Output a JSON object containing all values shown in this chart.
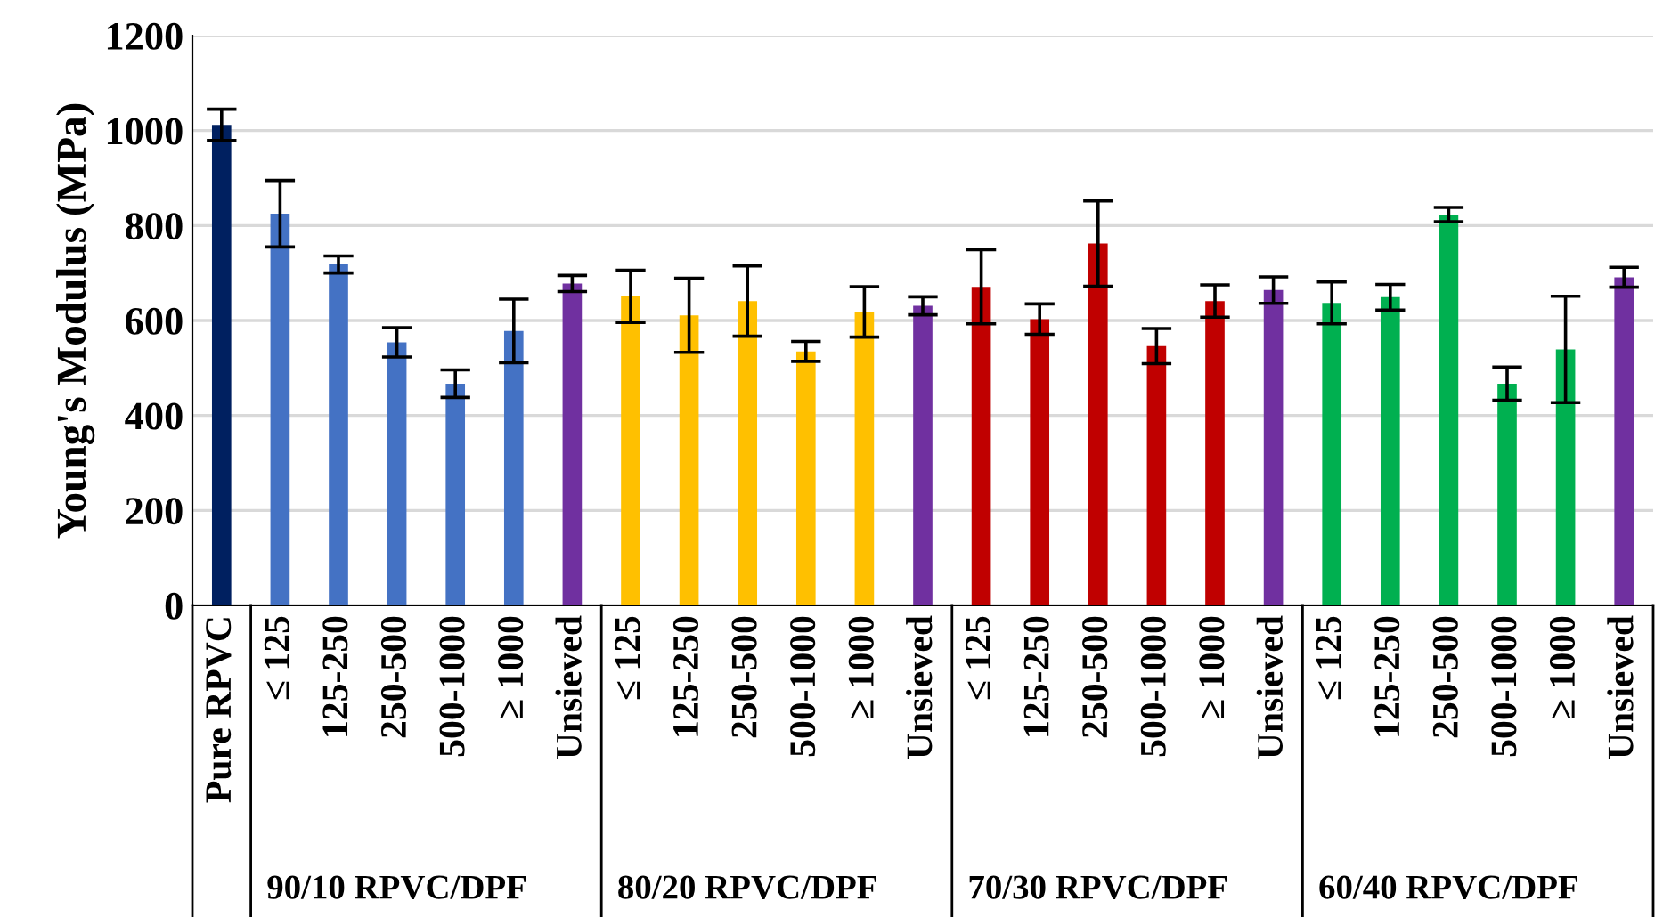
{
  "chart_data": {
    "type": "bar",
    "ylabel": "Young's Modulus (MPa)",
    "categories": [
      "Pure RPVC",
      "≤ 125",
      "125-250",
      "250-500",
      "500-1000",
      "≥ 1000",
      "Unsieved",
      "≤ 125",
      "125-250",
      "250-500",
      "500-1000",
      "≥ 1000",
      "Unsieved",
      "≤ 125",
      "125-250",
      "250-500",
      "500-1000",
      "≥ 1000",
      "Unsieved",
      "≤ 125",
      "125-250",
      "250-500",
      "500-1000",
      "≥ 1000",
      "Unsieved"
    ],
    "values": [
      1012,
      825,
      718,
      554,
      467,
      578,
      678,
      651,
      611,
      641,
      535,
      618,
      631,
      671,
      603,
      762,
      546,
      641,
      664,
      637,
      649,
      823,
      467,
      539,
      691
    ],
    "errors": [
      33,
      70,
      18,
      31,
      29,
      67,
      17,
      55,
      78,
      74,
      21,
      53,
      19,
      78,
      32,
      90,
      37,
      34,
      28,
      44,
      27,
      15,
      35,
      112,
      21
    ],
    "colors": [
      "#002060",
      "#4472c4",
      "#4472c4",
      "#4472c4",
      "#4472c4",
      "#4472c4",
      "#7030a0",
      "#ffc000",
      "#ffc000",
      "#ffc000",
      "#ffc000",
      "#ffc000",
      "#7030a0",
      "#c00000",
      "#c00000",
      "#c00000",
      "#c00000",
      "#c00000",
      "#7030a0",
      "#00b050",
      "#00b050",
      "#00b050",
      "#00b050",
      "#00b050",
      "#7030a0"
    ],
    "annotations": [
      "90/10 RPVC/DPF",
      "80/20 RPVC/DPF",
      "70/30 RPVC/DPF",
      "60/40 RPVC/DPF"
    ],
    "ylim": [
      0,
      1200
    ],
    "yticks": [
      0,
      200,
      400,
      600,
      800,
      1000,
      1200
    ],
    "grid": "y"
  }
}
